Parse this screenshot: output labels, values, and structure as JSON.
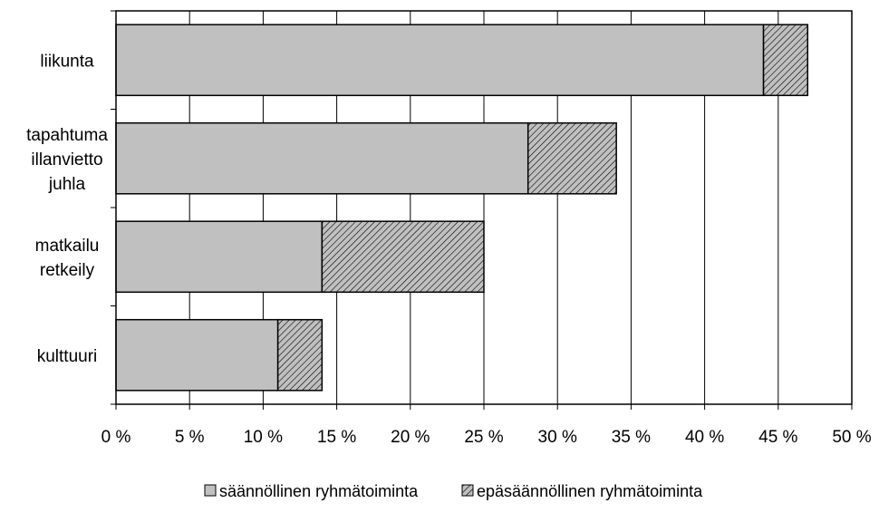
{
  "chart_data": {
    "type": "bar",
    "orientation": "horizontal",
    "stacked": true,
    "title": "",
    "xlabel": "",
    "ylabel": "",
    "categories": [
      [
        "liikunta"
      ],
      [
        "tapahtuma",
        "illanvietto",
        "juhla"
      ],
      [
        "matkailu",
        "retkeily"
      ],
      [
        "kulttuuri"
      ]
    ],
    "series": [
      {
        "name": "säännöllinen ryhmätoiminta",
        "values": [
          44,
          28,
          14,
          11
        ],
        "fill": "#c0c0c0",
        "pattern": "solid"
      },
      {
        "name": "epäsäännöllinen ryhmätoiminta",
        "values": [
          3,
          6,
          11,
          3
        ],
        "fill": "#c0c0c0",
        "pattern": "diagonal-hatch"
      }
    ],
    "xlim": [
      0,
      50
    ],
    "xticks": [
      0,
      5,
      10,
      15,
      20,
      25,
      30,
      35,
      40,
      45,
      50
    ],
    "xtick_labels": [
      "0 %",
      "5 %",
      "10 %",
      "15 %",
      "20 %",
      "25 %",
      "30 %",
      "35 %",
      "40 %",
      "45 %",
      "50 %"
    ],
    "grid": "vertical",
    "legend_position": "bottom-center"
  }
}
